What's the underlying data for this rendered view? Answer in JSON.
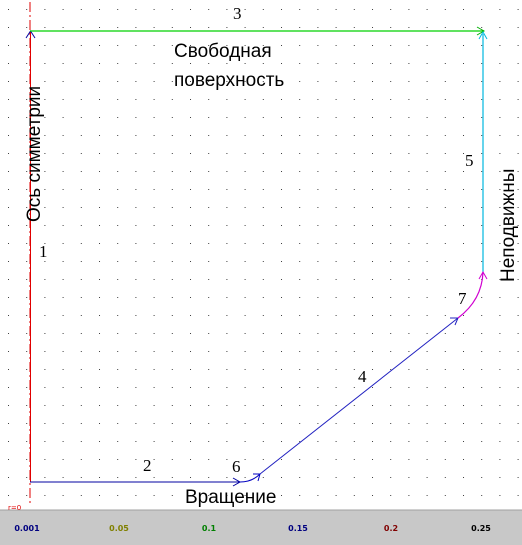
{
  "labels": {
    "top_text": "Свободная",
    "top_text_2": "поверхность",
    "left_text": "Ось симметрии",
    "right_text": "Неподвижны",
    "bottom_text": "Вращение",
    "r0": "r=0"
  },
  "segment_numbers": {
    "s1": "1",
    "s2": "2",
    "s3": "3",
    "s4": "4",
    "s5": "5",
    "s6": "6",
    "s7": "7"
  },
  "axis": {
    "ticks": [
      "0.001",
      "0.05",
      "0.1",
      "0.15",
      "0.2",
      "0.25"
    ],
    "tick_colors": [
      "#000080",
      "#808000",
      "#008000",
      "#000080",
      "#800000",
      "#000000"
    ]
  },
  "colors": {
    "boundary_1": "#e00000",
    "boundary_2": "#0000a0",
    "boundary_3": "#00d000",
    "boundary_4": "#2020c0",
    "boundary_5": "#00b8e0",
    "boundary_6": "#0000c0",
    "boundary_7": "#d000d0",
    "grid_dot": "#404040",
    "axis_bar": "#c8c8c8"
  }
}
